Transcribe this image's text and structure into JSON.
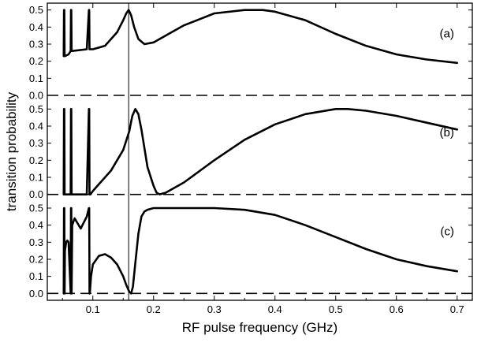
{
  "chart_data": {
    "type": "line",
    "xlabel": "RF pulse frequency (GHz)",
    "ylabel": "transition probability",
    "xlim": [
      0.025,
      0.725
    ],
    "xticks": [
      0.1,
      0.2,
      0.3,
      0.4,
      0.5,
      0.6,
      0.7
    ],
    "xtick_labels": [
      "0.1",
      "0.2",
      "0.3",
      "0.4",
      "0.5",
      "0.6",
      "0.7"
    ],
    "yticks": [
      0.0,
      0.1,
      0.2,
      0.3,
      0.4,
      0.5
    ],
    "ytick_labels": [
      "0.0",
      "0.1",
      "0.2",
      "0.3",
      "0.4",
      "0.5"
    ],
    "stacked_panels": 3,
    "panel_ylim": [
      -0.04,
      0.54
    ],
    "dashed_baseline_y": 0.0,
    "vertical_reference_line_x": 0.159,
    "grid": false,
    "panels": [
      {
        "label": "(a)",
        "x": [
          0.052,
          0.0525,
          0.053,
          0.0535,
          0.054,
          0.06,
          0.0635,
          0.064,
          0.0645,
          0.065,
          0.066,
          0.09,
          0.0935,
          0.094,
          0.0945,
          0.095,
          0.096,
          0.1,
          0.12,
          0.14,
          0.15,
          0.155,
          0.159,
          0.163,
          0.168,
          0.175,
          0.185,
          0.2,
          0.22,
          0.25,
          0.3,
          0.35,
          0.38,
          0.4,
          0.45,
          0.5,
          0.55,
          0.6,
          0.65,
          0.7
        ],
        "y": [
          0.23,
          0.5,
          0.5,
          0.23,
          0.23,
          0.24,
          0.26,
          0.5,
          0.5,
          0.26,
          0.26,
          0.27,
          0.5,
          0.5,
          0.27,
          0.27,
          0.27,
          0.27,
          0.29,
          0.37,
          0.44,
          0.48,
          0.5,
          0.47,
          0.4,
          0.33,
          0.3,
          0.31,
          0.35,
          0.41,
          0.48,
          0.5,
          0.5,
          0.49,
          0.44,
          0.36,
          0.29,
          0.24,
          0.21,
          0.19
        ]
      },
      {
        "label": "(b)",
        "x": [
          0.052,
          0.0525,
          0.053,
          0.0535,
          0.054,
          0.06,
          0.0635,
          0.064,
          0.0645,
          0.065,
          0.066,
          0.09,
          0.0935,
          0.094,
          0.0945,
          0.095,
          0.096,
          0.1,
          0.11,
          0.13,
          0.15,
          0.16,
          0.165,
          0.17,
          0.175,
          0.18,
          0.19,
          0.2,
          0.205,
          0.21,
          0.22,
          0.25,
          0.3,
          0.35,
          0.4,
          0.45,
          0.5,
          0.52,
          0.55,
          0.6,
          0.65,
          0.7
        ],
        "y": [
          0.0,
          0.5,
          0.5,
          0.0,
          0.0,
          0.0,
          0.0,
          0.5,
          0.5,
          0.0,
          0.0,
          0.0,
          0.5,
          0.5,
          0.0,
          0.0,
          0.0,
          0.02,
          0.06,
          0.14,
          0.26,
          0.37,
          0.46,
          0.5,
          0.47,
          0.38,
          0.16,
          0.05,
          0.01,
          0.0,
          0.01,
          0.07,
          0.2,
          0.32,
          0.41,
          0.47,
          0.5,
          0.5,
          0.49,
          0.46,
          0.42,
          0.38
        ]
      },
      {
        "label": "(c)",
        "x": [
          0.052,
          0.0525,
          0.053,
          0.0535,
          0.054,
          0.056,
          0.058,
          0.06,
          0.0635,
          0.064,
          0.0645,
          0.065,
          0.066,
          0.07,
          0.08,
          0.09,
          0.0935,
          0.094,
          0.0945,
          0.095,
          0.097,
          0.1,
          0.11,
          0.12,
          0.13,
          0.14,
          0.15,
          0.155,
          0.16,
          0.163,
          0.166,
          0.17,
          0.175,
          0.18,
          0.185,
          0.19,
          0.2,
          0.22,
          0.25,
          0.3,
          0.35,
          0.4,
          0.45,
          0.5,
          0.55,
          0.6,
          0.65,
          0.7
        ],
        "y": [
          0.0,
          0.5,
          0.5,
          0.0,
          0.25,
          0.3,
          0.31,
          0.3,
          0.0,
          0.5,
          0.5,
          0.0,
          0.4,
          0.44,
          0.38,
          0.45,
          0.5,
          0.5,
          0.0,
          0.0,
          0.1,
          0.17,
          0.22,
          0.23,
          0.21,
          0.17,
          0.1,
          0.05,
          0.01,
          0.0,
          0.04,
          0.18,
          0.35,
          0.45,
          0.48,
          0.49,
          0.5,
          0.5,
          0.5,
          0.5,
          0.49,
          0.46,
          0.4,
          0.33,
          0.26,
          0.2,
          0.16,
          0.13
        ]
      }
    ]
  }
}
